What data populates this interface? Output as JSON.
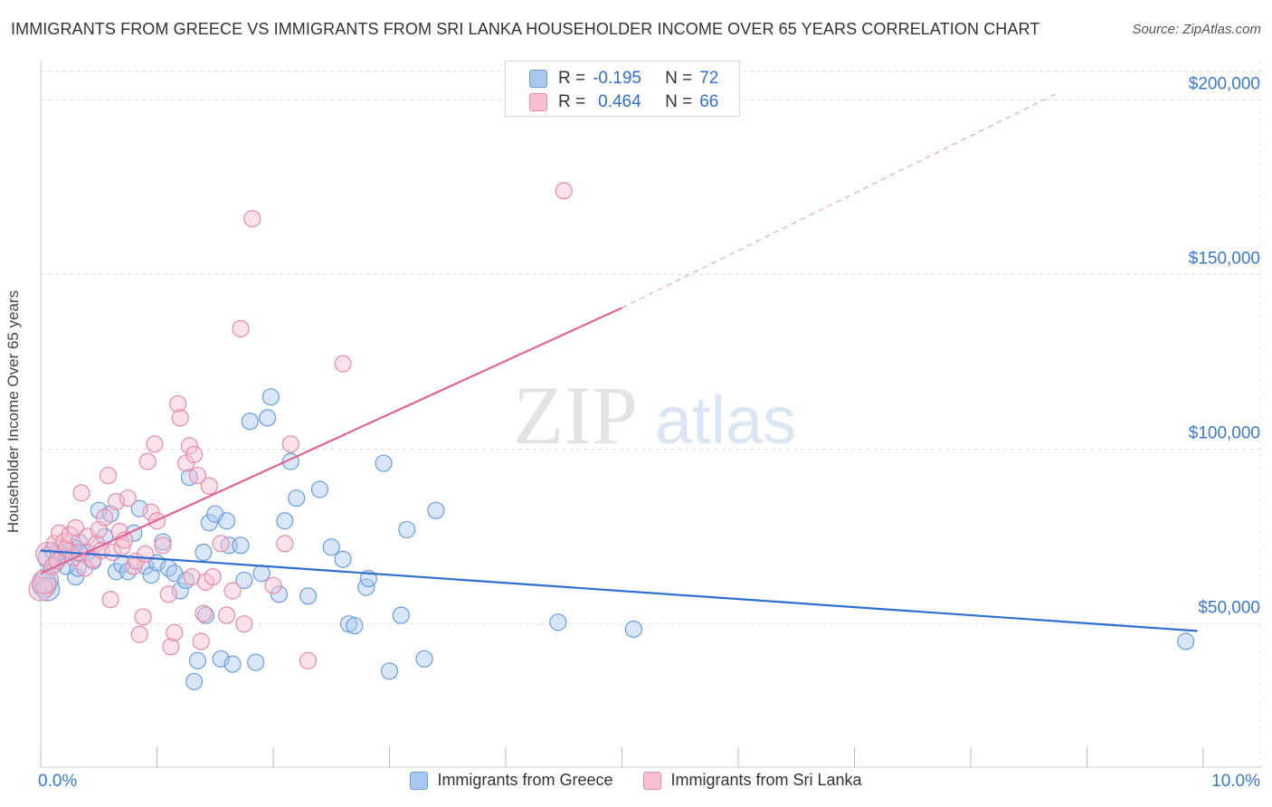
{
  "title": "IMMIGRANTS FROM GREECE VS IMMIGRANTS FROM SRI LANKA HOUSEHOLDER INCOME OVER 65 YEARS CORRELATION CHART",
  "source": "Source: ZipAtlas.com",
  "watermark": {
    "zip": "ZIP",
    "atlas": "atlas"
  },
  "colors": {
    "greece_fill": "#a9c8f0",
    "greece_stroke": "#6a9ede",
    "greece_line": "#2f6fcf",
    "srilanka_fill": "#f7bfd0",
    "srilanka_stroke": "#e88aa8",
    "srilanka_line": "#e06690",
    "axis_label": "#3a78d0",
    "grid": "#dddddd"
  },
  "stats": {
    "greece": {
      "r_label": "R =",
      "r": "-0.195",
      "n_label": "N =",
      "n": "72"
    },
    "srilanka": {
      "r_label": "R =",
      "r": "0.464",
      "n_label": "N =",
      "n": "66"
    }
  },
  "chart_data": {
    "type": "scatter",
    "title": "IMMIGRANTS FROM GREECE VS IMMIGRANTS FROM SRI LANKA HOUSEHOLDER INCOME OVER 65 YEARS CORRELATION CHART",
    "xlabel": "",
    "ylabel": "Householder Income Over 65 years",
    "xlim": [
      0,
      10
    ],
    "ylim": [
      9000,
      211000
    ],
    "x_tick_labels": {
      "left": "0.0%",
      "right": "10.0%"
    },
    "y_ticks": [
      {
        "value": 50000,
        "label": "$50,000"
      },
      {
        "value": 100000,
        "label": "$100,000"
      },
      {
        "value": 150000,
        "label": "$150,000"
      },
      {
        "value": 200000,
        "label": "$200,000"
      }
    ],
    "grid": true,
    "legend": "bottom",
    "series": [
      {
        "name": "Immigrants from Greece",
        "color": "#6a9ede",
        "trend": {
          "x0": 0.0,
          "y0": 71000,
          "x1": 9.95,
          "y1": 48000
        },
        "points": [
          [
            0.03,
            61000
          ],
          [
            0.05,
            62500
          ],
          [
            0.06,
            60000
          ],
          [
            0.08,
            69000
          ],
          [
            0.1,
            71000
          ],
          [
            0.12,
            67000
          ],
          [
            0.15,
            70500
          ],
          [
            0.18,
            69500
          ],
          [
            0.22,
            66500
          ],
          [
            0.25,
            71000
          ],
          [
            0.28,
            72000
          ],
          [
            0.3,
            63500
          ],
          [
            0.32,
            66000
          ],
          [
            0.33,
            73500
          ],
          [
            0.35,
            70000
          ],
          [
            0.4,
            70500
          ],
          [
            0.45,
            68000
          ],
          [
            0.5,
            82500
          ],
          [
            0.55,
            75000
          ],
          [
            0.6,
            81500
          ],
          [
            0.65,
            65000
          ],
          [
            0.7,
            67000
          ],
          [
            0.75,
            65000
          ],
          [
            0.8,
            76000
          ],
          [
            0.85,
            83000
          ],
          [
            0.9,
            66500
          ],
          [
            0.95,
            64000
          ],
          [
            1.0,
            67500
          ],
          [
            1.05,
            73500
          ],
          [
            1.1,
            66000
          ],
          [
            1.15,
            64500
          ],
          [
            1.2,
            59500
          ],
          [
            1.25,
            62500
          ],
          [
            1.28,
            92000
          ],
          [
            1.32,
            33500
          ],
          [
            1.35,
            39500
          ],
          [
            1.4,
            70500
          ],
          [
            1.42,
            52500
          ],
          [
            1.45,
            79000
          ],
          [
            1.5,
            81500
          ],
          [
            1.55,
            40000
          ],
          [
            1.6,
            79500
          ],
          [
            1.62,
            72500
          ],
          [
            1.65,
            38500
          ],
          [
            1.72,
            72500
          ],
          [
            1.75,
            62500
          ],
          [
            1.8,
            108000
          ],
          [
            1.85,
            39000
          ],
          [
            1.9,
            64500
          ],
          [
            1.95,
            109000
          ],
          [
            1.98,
            115000
          ],
          [
            2.05,
            58500
          ],
          [
            2.1,
            79500
          ],
          [
            2.15,
            96500
          ],
          [
            2.2,
            86000
          ],
          [
            2.3,
            58000
          ],
          [
            2.4,
            88500
          ],
          [
            2.5,
            72000
          ],
          [
            2.6,
            68500
          ],
          [
            2.65,
            50000
          ],
          [
            2.7,
            49500
          ],
          [
            2.8,
            60500
          ],
          [
            2.82,
            63000
          ],
          [
            2.95,
            96000
          ],
          [
            3.0,
            36500
          ],
          [
            3.1,
            52500
          ],
          [
            3.15,
            77000
          ],
          [
            3.3,
            40000
          ],
          [
            3.4,
            82500
          ],
          [
            4.45,
            50500
          ],
          [
            5.1,
            48500
          ],
          [
            9.85,
            45000
          ]
        ]
      },
      {
        "name": "Immigrants from Sri Lanka",
        "color": "#e88aa8",
        "trend": {
          "x0": 0.0,
          "y0": 64500,
          "x1": 5.0,
          "y1": 140500,
          "dash_x1": 8.75,
          "dash_y1": 202000
        },
        "points": [
          [
            0.0,
            60000
          ],
          [
            0.03,
            62000
          ],
          [
            0.06,
            70000
          ],
          [
            0.1,
            66500
          ],
          [
            0.12,
            73000
          ],
          [
            0.14,
            68000
          ],
          [
            0.16,
            76000
          ],
          [
            0.2,
            73500
          ],
          [
            0.22,
            71500
          ],
          [
            0.25,
            75500
          ],
          [
            0.28,
            69000
          ],
          [
            0.3,
            77500
          ],
          [
            0.33,
            70500
          ],
          [
            0.35,
            87500
          ],
          [
            0.38,
            66000
          ],
          [
            0.4,
            75000
          ],
          [
            0.45,
            68500
          ],
          [
            0.48,
            73000
          ],
          [
            0.5,
            77000
          ],
          [
            0.52,
            71000
          ],
          [
            0.55,
            80500
          ],
          [
            0.58,
            92500
          ],
          [
            0.6,
            57000
          ],
          [
            0.62,
            70500
          ],
          [
            0.65,
            85000
          ],
          [
            0.68,
            76500
          ],
          [
            0.7,
            72000
          ],
          [
            0.72,
            74000
          ],
          [
            0.75,
            86000
          ],
          [
            0.8,
            66500
          ],
          [
            0.82,
            68000
          ],
          [
            0.85,
            47000
          ],
          [
            0.88,
            52000
          ],
          [
            0.9,
            70000
          ],
          [
            0.92,
            96500
          ],
          [
            0.95,
            82000
          ],
          [
            0.98,
            101500
          ],
          [
            1.0,
            79500
          ],
          [
            1.05,
            72500
          ],
          [
            1.1,
            58500
          ],
          [
            1.12,
            43500
          ],
          [
            1.15,
            47500
          ],
          [
            1.18,
            113000
          ],
          [
            1.2,
            109000
          ],
          [
            1.25,
            96000
          ],
          [
            1.28,
            101000
          ],
          [
            1.3,
            63500
          ],
          [
            1.32,
            98500
          ],
          [
            1.35,
            92500
          ],
          [
            1.38,
            45000
          ],
          [
            1.4,
            53000
          ],
          [
            1.42,
            62000
          ],
          [
            1.45,
            89500
          ],
          [
            1.48,
            63500
          ],
          [
            1.55,
            73000
          ],
          [
            1.6,
            52500
          ],
          [
            1.65,
            59500
          ],
          [
            1.72,
            134500
          ],
          [
            1.75,
            50000
          ],
          [
            1.82,
            166000
          ],
          [
            2.0,
            61000
          ],
          [
            2.1,
            73000
          ],
          [
            2.15,
            101500
          ],
          [
            2.3,
            39500
          ],
          [
            2.6,
            124500
          ],
          [
            4.5,
            174000
          ]
        ]
      }
    ]
  },
  "legend": {
    "greece_label": "Immigrants from Greece",
    "srilanka_label": "Immigrants from Sri Lanka"
  }
}
